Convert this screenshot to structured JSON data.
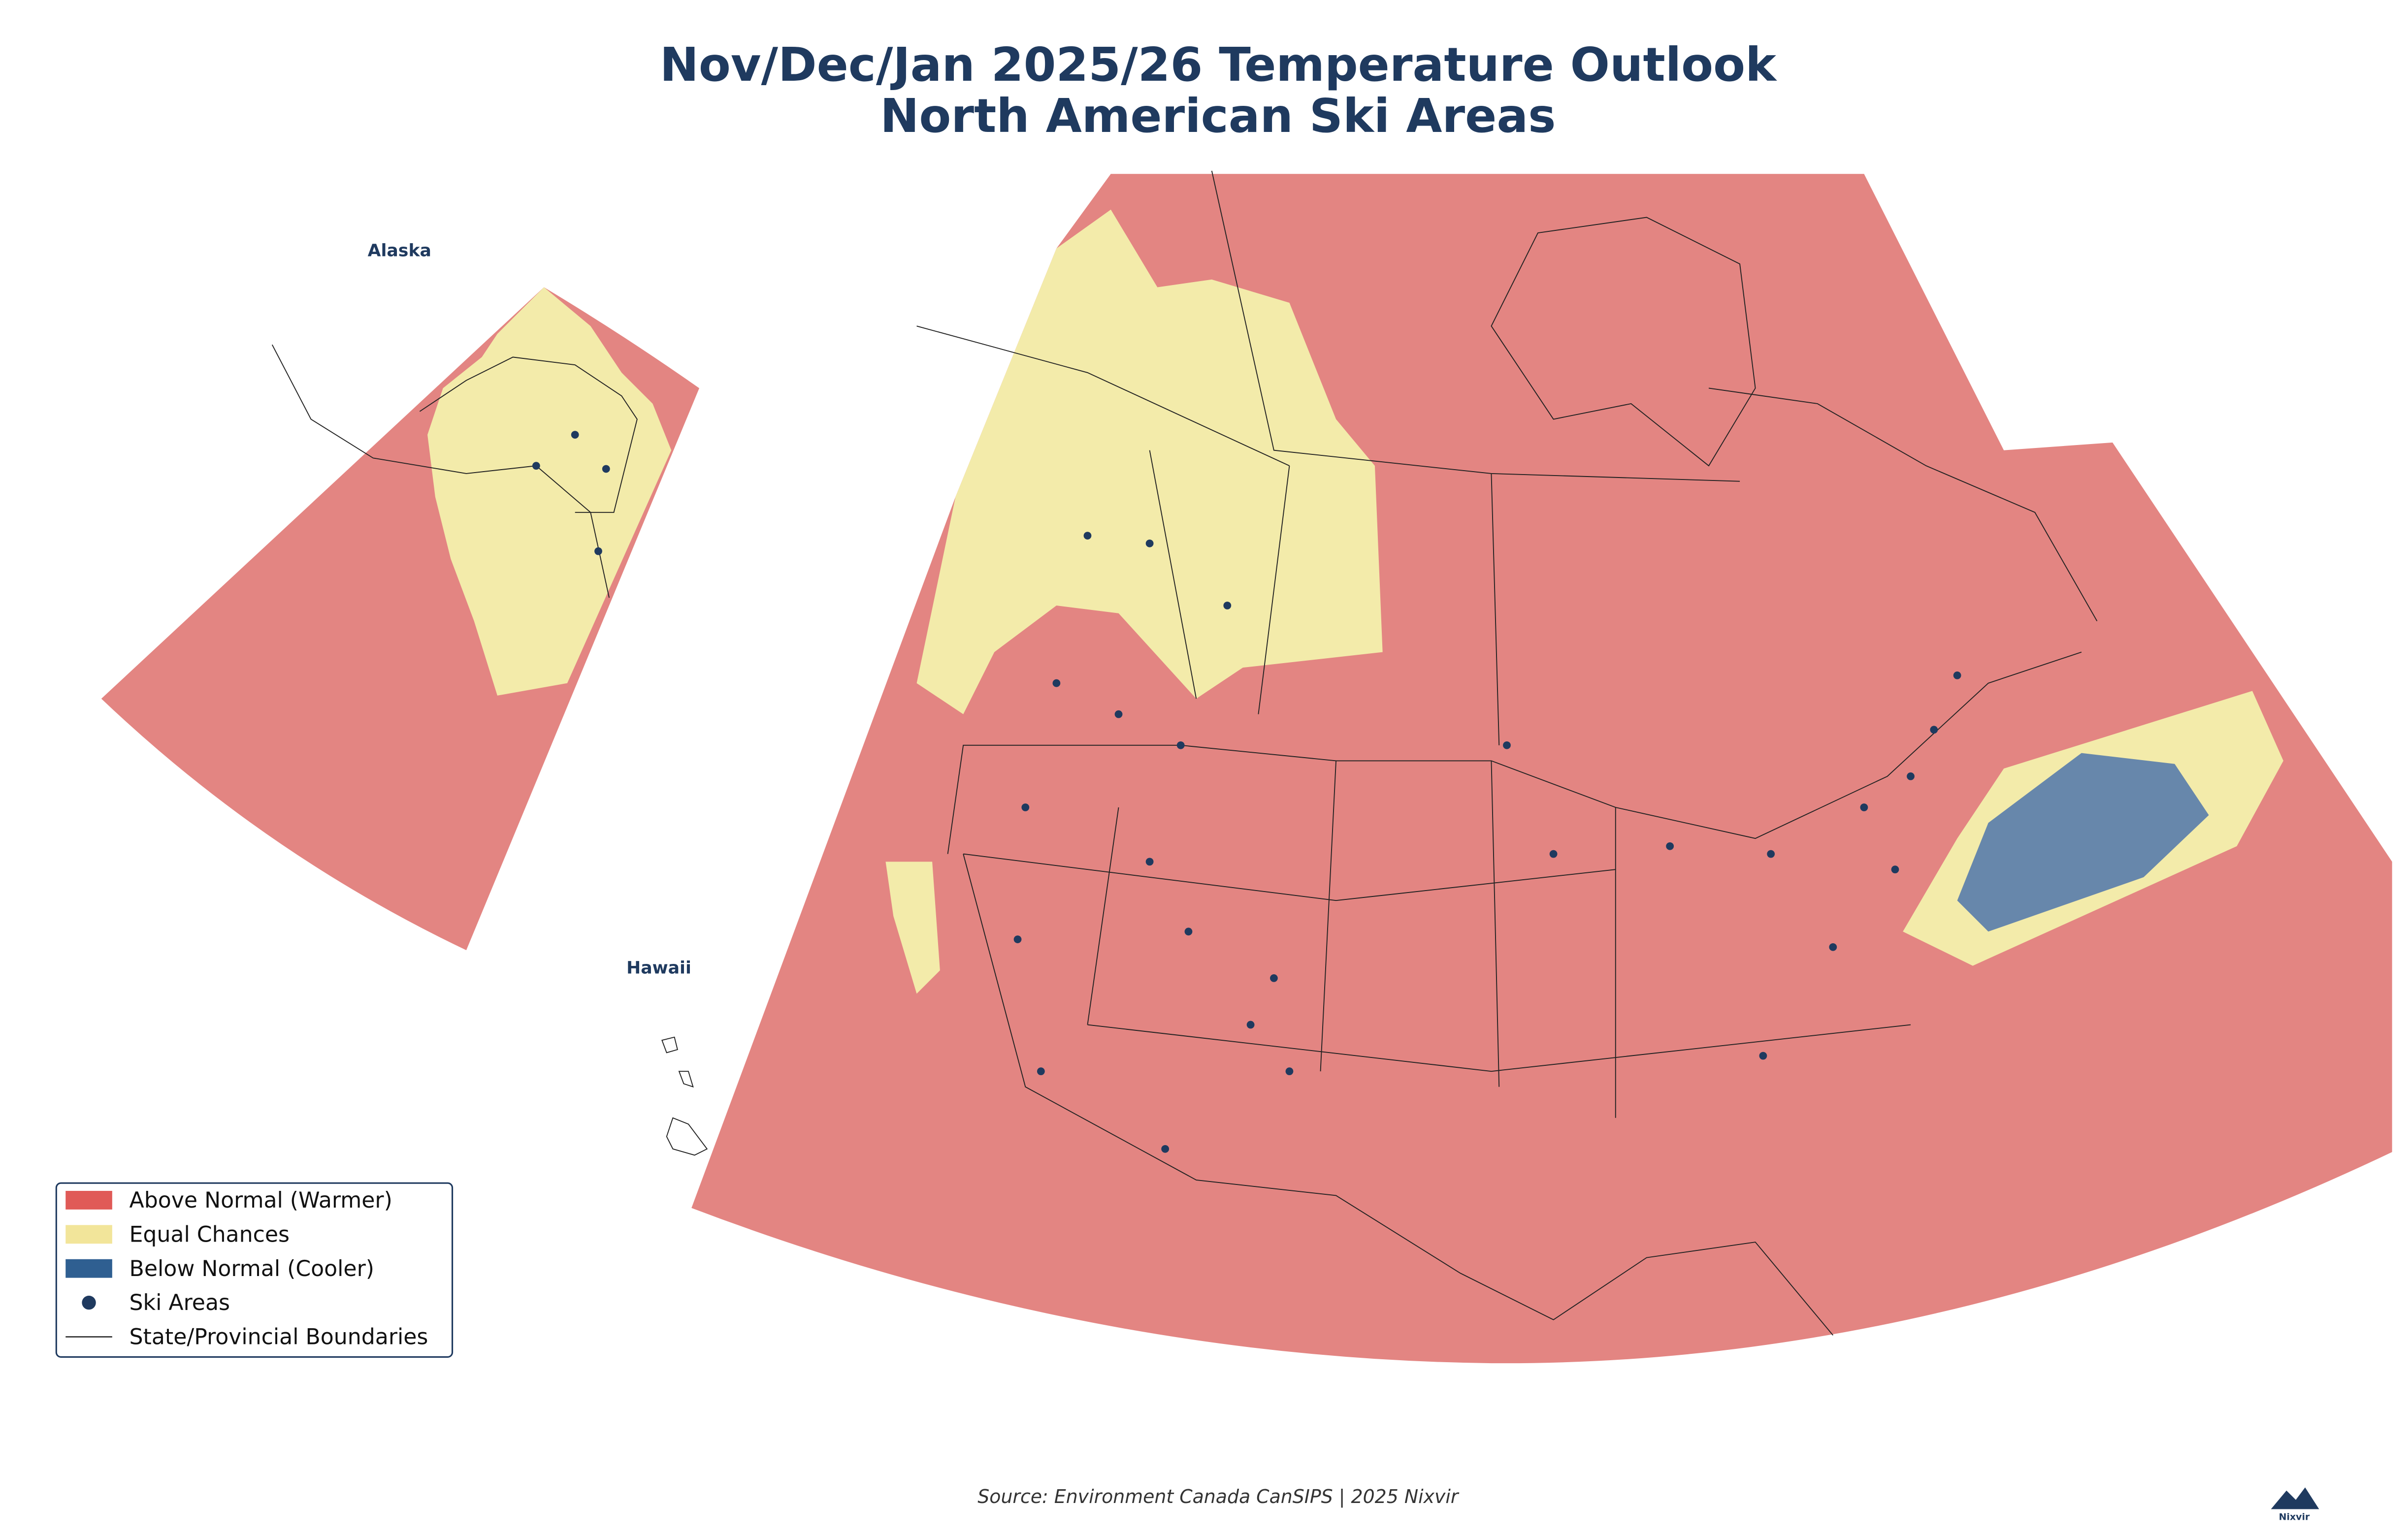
{
  "title": [
    "Nov/Dec/Jan 2025/26 Temperature Outlook",
    "North American Ski Areas"
  ],
  "insets": {
    "alaska": "Alaska",
    "hawaii": "Hawaii"
  },
  "legend": [
    "Above Normal (Warmer)",
    "Equal Chances",
    "Below Normal (Cooler)",
    "Ski Areas",
    "State/Provincial Boundaries"
  ],
  "source": "Source: Environment Canada CanSIPS | 2025 Nixvir",
  "logo": "Nixvir"
}
